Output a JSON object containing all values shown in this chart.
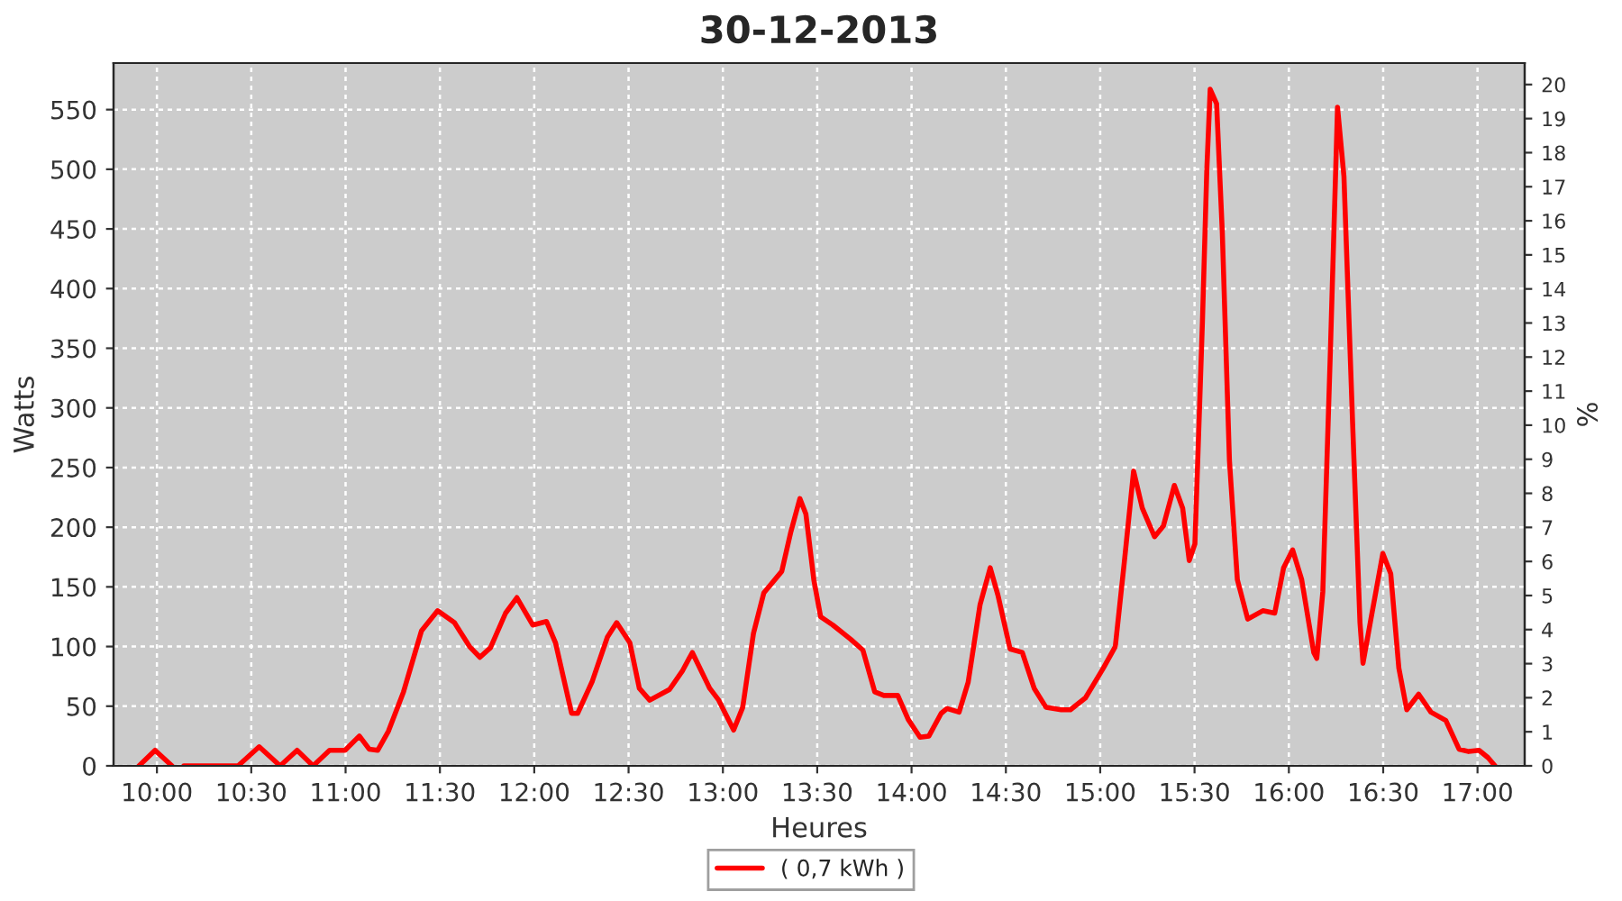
{
  "chart_data": {
    "type": "line",
    "title": "30-12-2013",
    "xlabel": "Heures",
    "ylabel": "Watts",
    "y2label": "%",
    "x": [
      9.905,
      9.99,
      10.08,
      10.11,
      10.143,
      10.43,
      10.542,
      10.653,
      10.743,
      10.828,
      10.915,
      10.997,
      11.073,
      11.125,
      11.17,
      11.227,
      11.307,
      11.402,
      11.488,
      11.577,
      11.657,
      11.712,
      11.768,
      11.848,
      11.908,
      11.992,
      12.065,
      12.113,
      12.198,
      12.23,
      12.308,
      12.388,
      12.437,
      12.507,
      12.557,
      12.612,
      12.717,
      12.787,
      12.838,
      12.93,
      12.978,
      13.057,
      13.105,
      13.162,
      13.217,
      13.312,
      13.36,
      13.408,
      13.44,
      13.482,
      13.518,
      13.583,
      13.678,
      13.742,
      13.805,
      13.853,
      13.927,
      13.982,
      14.045,
      14.092,
      14.157,
      14.188,
      14.252,
      14.3,
      14.363,
      14.417,
      14.458,
      14.522,
      14.587,
      14.65,
      14.713,
      14.793,
      14.842,
      14.922,
      15.017,
      15.08,
      15.128,
      15.177,
      15.223,
      15.288,
      15.335,
      15.393,
      15.437,
      15.472,
      15.502,
      15.542,
      15.565,
      15.583,
      15.617,
      15.647,
      15.685,
      15.727,
      15.782,
      15.862,
      15.925,
      15.972,
      16.02,
      16.068,
      16.132,
      16.148,
      16.18,
      16.22,
      16.258,
      16.292,
      16.338,
      16.377,
      16.393,
      16.435,
      16.498,
      16.54,
      16.583,
      16.625,
      16.688,
      16.753,
      16.832,
      16.902,
      16.953,
      17.008,
      17.055,
      17.093
    ],
    "series": [
      {
        "name": "( 0,7 kWh )",
        "color": "#ff0000",
        "values": [
          0,
          13,
          0,
          null,
          0,
          0,
          16,
          0,
          13,
          0,
          13,
          13,
          25,
          14,
          13,
          29,
          62,
          113,
          130,
          120,
          100,
          91,
          99,
          128,
          141,
          118,
          121,
          103,
          44,
          44,
          71,
          108,
          120,
          103,
          65,
          55,
          64,
          80,
          95,
          65,
          55,
          30,
          49,
          111,
          145,
          163,
          196,
          224,
          211,
          156,
          125,
          118,
          106,
          97,
          62,
          59,
          59,
          39,
          24,
          25,
          44,
          48,
          45,
          70,
          135,
          166,
          143,
          98,
          95,
          65,
          49,
          47,
          47,
          57,
          82,
          100,
          171,
          247,
          216,
          192,
          201,
          235,
          216,
          172,
          186,
          373,
          499,
          567,
          555,
          448,
          256,
          156,
          123,
          130,
          128,
          166,
          181,
          156,
          95,
          90,
          146,
          347,
          552,
          494,
          287,
          120,
          86,
          123,
          178,
          161,
          82,
          47,
          60,
          45,
          38,
          14,
          12,
          13,
          7,
          0
        ]
      }
    ],
    "xlim": [
      9.77,
      17.25
    ],
    "xticks": [
      {
        "value": 10,
        "label": "10:00"
      },
      {
        "value": 10.5,
        "label": "10:30"
      },
      {
        "value": 11,
        "label": "11:00"
      },
      {
        "value": 11.5,
        "label": "11:30"
      },
      {
        "value": 12,
        "label": "12:00"
      },
      {
        "value": 12.5,
        "label": "12:30"
      },
      {
        "value": 13,
        "label": "13:00"
      },
      {
        "value": 13.5,
        "label": "13:30"
      },
      {
        "value": 14,
        "label": "14:00"
      },
      {
        "value": 14.5,
        "label": "14:30"
      },
      {
        "value": 15,
        "label": "15:00"
      },
      {
        "value": 15.5,
        "label": "15:30"
      },
      {
        "value": 16,
        "label": "16:00"
      },
      {
        "value": 16.5,
        "label": "16:30"
      },
      {
        "value": 17,
        "label": "17:00"
      }
    ],
    "ylim": [
      0,
      589
    ],
    "yticks": [
      0,
      50,
      100,
      150,
      200,
      250,
      300,
      350,
      400,
      450,
      500,
      550
    ],
    "y2lim": [
      0,
      20.63
    ],
    "y2ticks": [
      0,
      1,
      2,
      3,
      4,
      5,
      6,
      7,
      8,
      9,
      10,
      11,
      12,
      13,
      14,
      15,
      16,
      17,
      18,
      19,
      20
    ],
    "grid": true,
    "legend": "bottom",
    "line_style": "solid",
    "marker": "none"
  }
}
